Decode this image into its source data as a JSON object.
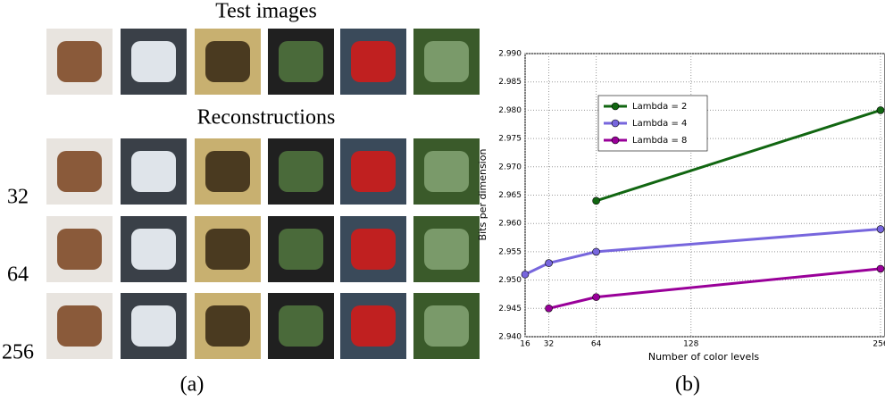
{
  "panel_a": {
    "test_title": "Test images",
    "recon_title": "Reconstructions",
    "row_labels": [
      "32",
      "64",
      "256"
    ],
    "caption": "(a)"
  },
  "caption_b": "(b)",
  "chart_data": {
    "type": "line",
    "xlabel": "Number of color levels",
    "ylabel": "Bits per dimension",
    "xlim": [
      16,
      256
    ],
    "xticks": [
      16,
      32,
      64,
      128,
      256
    ],
    "ylim": [
      2.94,
      2.99
    ],
    "yticks": [
      {
        "value": 2.94,
        "label": "2.940"
      },
      {
        "value": 2.945,
        "label": "2.945"
      },
      {
        "value": 2.95,
        "label": "2.950"
      },
      {
        "value": 2.955,
        "label": "2.955"
      },
      {
        "value": 2.96,
        "label": "2.960"
      },
      {
        "value": 2.965,
        "label": "2.965"
      },
      {
        "value": 2.97,
        "label": "2.970"
      },
      {
        "value": 2.975,
        "label": "2.975"
      },
      {
        "value": 2.98,
        "label": "2.980"
      },
      {
        "value": 2.985,
        "label": "2.985"
      },
      {
        "value": 2.99,
        "label": "2.990"
      }
    ],
    "grid": true,
    "legend": "upper left",
    "series": [
      {
        "name": "Lambda = 2",
        "color": "#116611",
        "x": [
          64,
          256
        ],
        "values": [
          2.964,
          2.98
        ]
      },
      {
        "name": "Lambda = 4",
        "color": "#7766dd",
        "x": [
          16,
          32,
          64,
          256
        ],
        "values": [
          2.951,
          2.953,
          2.955,
          2.959
        ]
      },
      {
        "name": "Lambda = 8",
        "color": "#990099",
        "x": [
          32,
          64,
          256
        ],
        "values": [
          2.945,
          2.947,
          2.952
        ]
      }
    ]
  }
}
